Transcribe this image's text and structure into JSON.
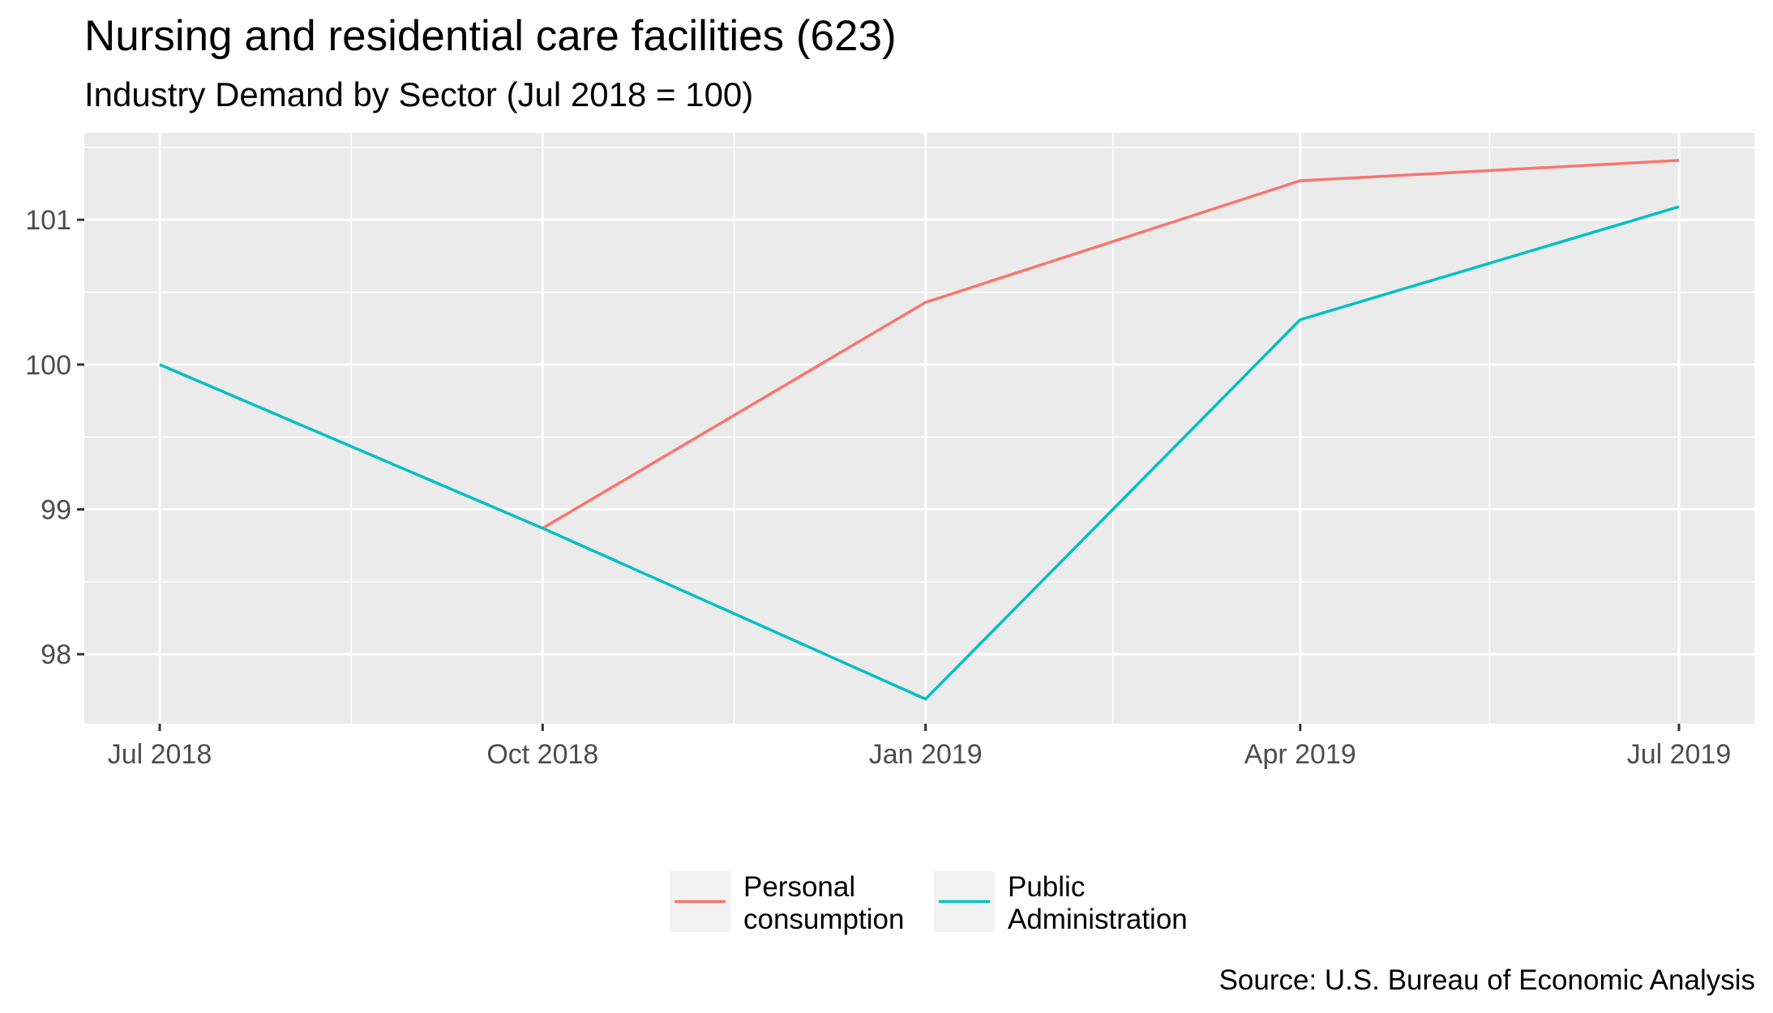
{
  "chart_data": {
    "type": "line",
    "title": "Nursing and residential care facilities (623)",
    "subtitle": "Industry Demand by Sector (Jul 2018 = 100)",
    "caption": "Source: U.S. Bureau of Economic Analysis",
    "xlabel": "",
    "ylabel": "",
    "x": [
      "2018-07-01",
      "2018-10-01",
      "2019-01-01",
      "2019-04-01",
      "2019-07-01"
    ],
    "x_tick_labels": [
      "Jul 2018",
      "Oct 2018",
      "Jan 2019",
      "Apr 2019",
      "Jul 2019"
    ],
    "y_ticks": [
      98,
      99,
      100,
      101
    ],
    "ylim": [
      97.52,
      101.6
    ],
    "grid": true,
    "legend_position": "bottom",
    "background_color": "#ebebeb",
    "grid_color": "#ffffff",
    "series": [
      {
        "name": "Personal consumption",
        "name_lines": [
          "Personal",
          "consumption"
        ],
        "color": "#f8766d",
        "values": [
          null,
          98.87,
          100.43,
          101.27,
          101.41
        ]
      },
      {
        "name": "Public Administration",
        "name_lines": [
          "Public",
          "Administration"
        ],
        "color": "#00bfc4",
        "values": [
          100.0,
          98.87,
          97.69,
          100.31,
          101.09
        ]
      }
    ]
  }
}
